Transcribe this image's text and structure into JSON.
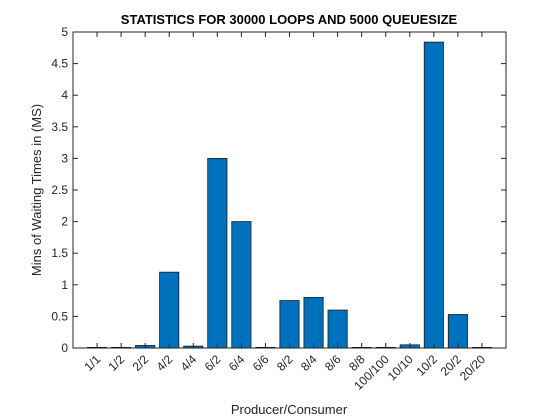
{
  "chart_data": {
    "type": "bar",
    "title": "STATISTICS FOR 30000 LOOPS AND 5000 QUEUESIZE",
    "xlabel": "Producer/Consumer",
    "ylabel": "Mins of Waiting Times in (MS)",
    "categories": [
      "1/1",
      "1/2",
      "2/2",
      "4/2",
      "4/4",
      "6/2",
      "6/4",
      "6/6",
      "8/2",
      "8/4",
      "8/6",
      "8/8",
      "100/100",
      "10/10",
      "10/2",
      "20/2",
      "20/20"
    ],
    "values": [
      0.005,
      0.01,
      0.04,
      1.2,
      0.03,
      3.0,
      2.0,
      0.01,
      0.75,
      0.8,
      0.6,
      0.005,
      0.01,
      0.05,
      4.84,
      0.53,
      0.005
    ],
    "ylim": [
      0,
      5
    ],
    "yticks": [
      0,
      0.5,
      1,
      1.5,
      2,
      2.5,
      3,
      3.5,
      4,
      4.5,
      5
    ],
    "grid": false,
    "bar_color": "#0072bd"
  }
}
